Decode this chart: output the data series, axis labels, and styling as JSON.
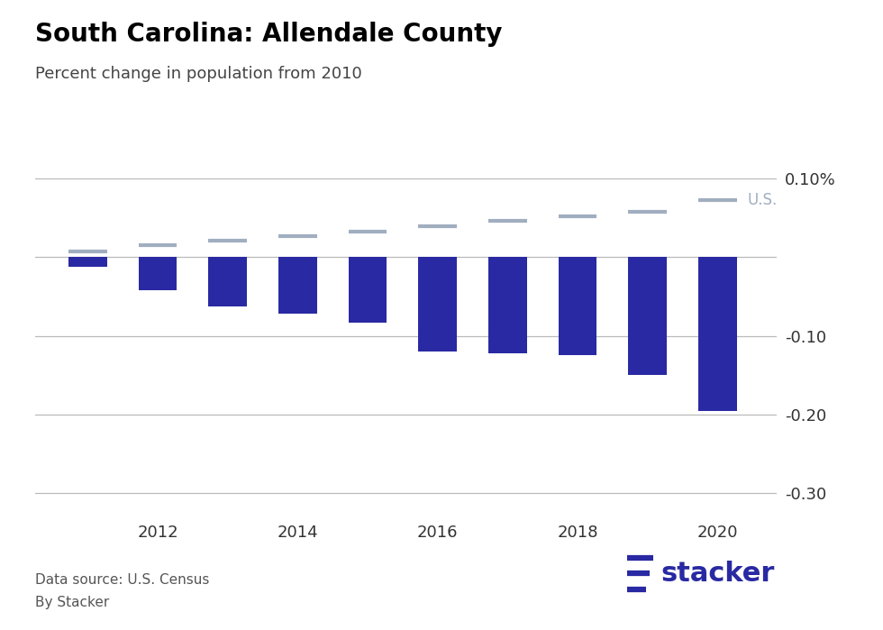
{
  "title": "South Carolina: Allendale County",
  "subtitle": "Percent change in population from 2010",
  "bar_color": "#2929a3",
  "us_line_color": "#a0aec0",
  "us_label_color": "#a0aec0",
  "us_label": "U.S.",
  "years": [
    2011,
    2012,
    2013,
    2014,
    2015,
    2016,
    2017,
    2018,
    2019,
    2020
  ],
  "county_values": [
    -0.012,
    -0.042,
    -0.062,
    -0.072,
    -0.083,
    -0.12,
    -0.122,
    -0.125,
    -0.15,
    -0.1954
  ],
  "us_values": [
    0.007,
    0.015,
    0.021,
    0.027,
    0.033,
    0.039,
    0.046,
    0.052,
    0.058,
    0.073
  ],
  "ylim": [
    -0.33,
    0.135
  ],
  "yticks": [
    0.1,
    0.0,
    -0.1,
    -0.2,
    -0.3
  ],
  "ytick_labels": [
    "0.10%",
    "",
    "-0.10",
    "-0.20",
    "-0.30"
  ],
  "xticks": [
    2012,
    2014,
    2016,
    2018,
    2020
  ],
  "footer_left_line1": "Data source: U.S. Census",
  "footer_left_line2": "By Stacker",
  "background_color": "#ffffff",
  "grid_color": "#bbbbbb",
  "stacker_color": "#2929a3",
  "bar_width": 0.55
}
